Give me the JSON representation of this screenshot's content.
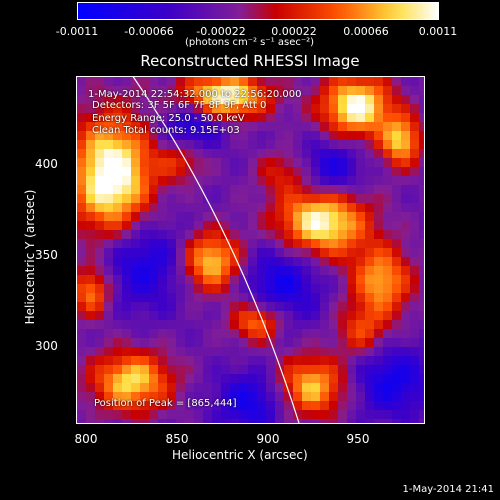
{
  "colorbar": {
    "tick_labels": [
      "-0.0011",
      "-0.00066",
      "-0.00022",
      "0.00022",
      "0.00066",
      "0.0011"
    ],
    "units_label": "(photons cm⁻² s⁻¹ asec⁻²)",
    "range": [
      -0.0011,
      0.0011
    ]
  },
  "title": "Reconstructed RHESSI Image",
  "info": {
    "time_range": "1-May-2014 22:54:32.000 to 22:56:20.000",
    "detectors": "Detectors: 3F 5F 6F 7F 8F 9F, Att 0",
    "energy_range": "Energy Range: 25.0 - 50.0 keV",
    "clean_counts": "Clean     Total counts: 9.15E+03",
    "peak": "Position of Peak = [865,444]"
  },
  "axes": {
    "xlabel": "Heliocentric X (arcsec)",
    "ylabel": "Heliocentric Y (arcsec)",
    "xticks": [
      "800",
      "850",
      "900",
      "950"
    ],
    "yticks": [
      "300",
      "350",
      "400"
    ],
    "xlim": [
      795,
      985
    ],
    "ylim": [
      256,
      446
    ]
  },
  "footer_date": "1-May-2014 21:41",
  "colors": {
    "background": "#000000",
    "colormap_low": "#0000ff",
    "colormap_high": "#ffffff"
  }
}
